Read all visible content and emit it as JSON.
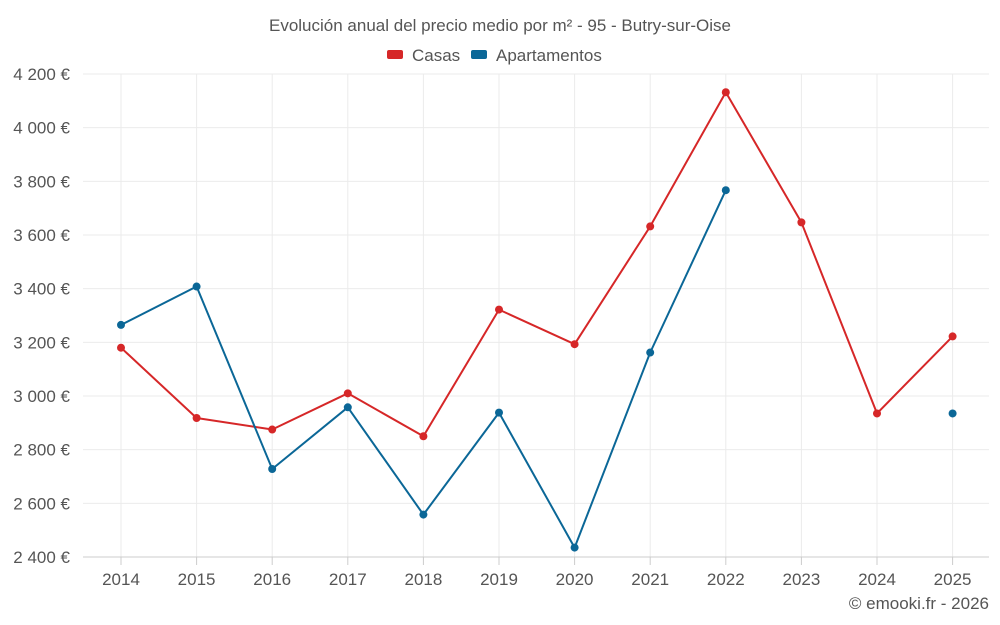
{
  "chart_data": {
    "type": "line",
    "title": "Evolución anual del precio medio por m² - 95 - Butry-sur-Oise",
    "categories": [
      "2014",
      "2015",
      "2016",
      "2017",
      "2018",
      "2019",
      "2020",
      "2021",
      "2022",
      "2023",
      "2024",
      "2025"
    ],
    "series": [
      {
        "name": "Casas",
        "color": "#d62728",
        "values": [
          3180,
          2918,
          2875,
          3010,
          2850,
          3322,
          3193,
          3632,
          4132,
          3647,
          2935,
          3222
        ]
      },
      {
        "name": "Apartamentos",
        "color": "#0b6797",
        "values": [
          3265,
          3408,
          2728,
          2958,
          2558,
          2938,
          2435,
          3162,
          3767,
          null,
          null,
          2935
        ]
      }
    ],
    "ylim": [
      2400,
      4200
    ],
    "yticks": [
      2400,
      2600,
      2800,
      3000,
      3200,
      3400,
      3600,
      3800,
      4000,
      4200
    ],
    "ytick_labels": [
      "2 400 €",
      "2 600 €",
      "2 800 €",
      "3 000 €",
      "3 200 €",
      "3 400 €",
      "3 600 €",
      "3 800 €",
      "4 000 €",
      "4 200 €"
    ],
    "grid": true,
    "legend_position": "top-center",
    "credit": "© emooki.fr - 2026"
  }
}
